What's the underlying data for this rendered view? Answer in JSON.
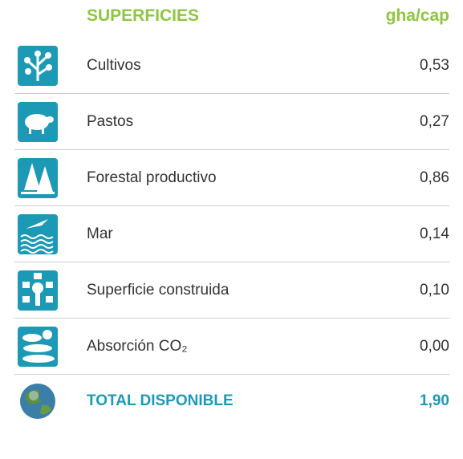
{
  "header": {
    "label": "SUPERFICIES",
    "unit": "gha/cap"
  },
  "rows": [
    {
      "label": "Cultivos",
      "value": "0,53"
    },
    {
      "label": "Pastos",
      "value": "0,27"
    },
    {
      "label": "Forestal productivo",
      "value": "0,86"
    },
    {
      "label": "Mar",
      "value": "0,14"
    },
    {
      "label": "Superficie construida",
      "value": "0,10"
    },
    {
      "label": "Absorción CO₂",
      "value": "0,00"
    }
  ],
  "total": {
    "label": "TOTAL DISPONIBLE",
    "value": "1,90"
  }
}
